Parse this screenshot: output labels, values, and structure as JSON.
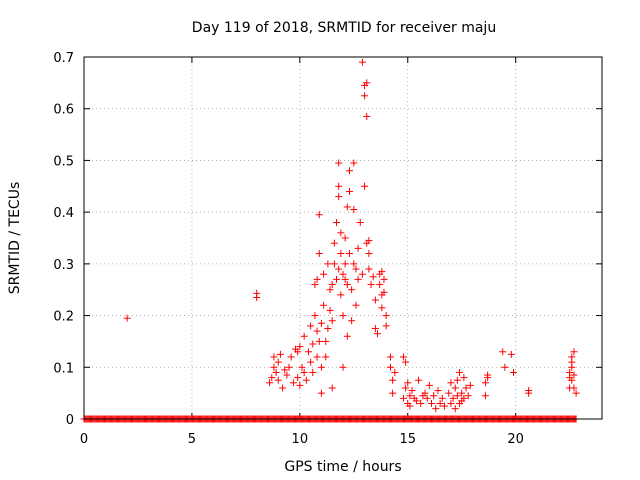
{
  "chart_data": {
    "type": "scatter",
    "title": "Day 119 of 2018, SRMTID for receiver maju",
    "xlabel": "GPS time / hours",
    "ylabel": "SRMTID / TECUs",
    "xlim": [
      0,
      24
    ],
    "ylim": [
      0,
      0.7
    ],
    "x_ticks": [
      0,
      5,
      10,
      15,
      20
    ],
    "y_ticks": [
      0,
      0.1,
      0.2,
      0.3,
      0.4,
      0.5,
      0.6,
      0.7
    ],
    "x_tick_labels": [
      "0",
      "5",
      "10",
      "15",
      "20"
    ],
    "y_tick_labels": [
      "0",
      "0.1",
      "0.2",
      "0.3",
      "0.4",
      "0.5",
      "0.6",
      "0.7"
    ],
    "grid": true,
    "marker": "+",
    "marker_color": "#ff0000",
    "series": [
      {
        "name": "SRMTID",
        "points": [
          [
            2.0,
            0.195
          ],
          [
            8.0,
            0.235
          ],
          [
            8.0,
            0.243
          ],
          [
            8.6,
            0.07
          ],
          [
            8.7,
            0.08
          ],
          [
            8.8,
            0.1
          ],
          [
            8.8,
            0.12
          ],
          [
            8.9,
            0.09
          ],
          [
            9.0,
            0.075
          ],
          [
            9.0,
            0.11
          ],
          [
            9.1,
            0.125
          ],
          [
            9.2,
            0.06
          ],
          [
            9.3,
            0.095
          ],
          [
            9.4,
            0.085
          ],
          [
            9.5,
            0.1
          ],
          [
            9.6,
            0.12
          ],
          [
            9.7,
            0.07
          ],
          [
            9.8,
            0.135
          ],
          [
            9.9,
            0.08
          ],
          [
            9.9,
            0.13
          ],
          [
            10.0,
            0.065
          ],
          [
            10.0,
            0.14
          ],
          [
            10.1,
            0.1
          ],
          [
            10.2,
            0.16
          ],
          [
            10.2,
            0.09
          ],
          [
            10.3,
            0.075
          ],
          [
            10.4,
            0.13
          ],
          [
            10.5,
            0.11
          ],
          [
            10.5,
            0.18
          ],
          [
            10.6,
            0.145
          ],
          [
            10.6,
            0.09
          ],
          [
            10.7,
            0.2
          ],
          [
            10.7,
            0.26
          ],
          [
            10.8,
            0.12
          ],
          [
            10.8,
            0.17
          ],
          [
            10.8,
            0.27
          ],
          [
            10.9,
            0.15
          ],
          [
            10.9,
            0.32
          ],
          [
            10.9,
            0.395
          ],
          [
            11.0,
            0.1
          ],
          [
            11.0,
            0.185
          ],
          [
            11.0,
            0.05
          ],
          [
            11.1,
            0.22
          ],
          [
            11.1,
            0.28
          ],
          [
            11.2,
            0.12
          ],
          [
            11.2,
            0.15
          ],
          [
            11.3,
            0.175
          ],
          [
            11.3,
            0.3
          ],
          [
            11.4,
            0.21
          ],
          [
            11.4,
            0.25
          ],
          [
            11.5,
            0.19
          ],
          [
            11.5,
            0.26
          ],
          [
            11.5,
            0.06
          ],
          [
            11.6,
            0.3
          ],
          [
            11.6,
            0.34
          ],
          [
            11.7,
            0.27
          ],
          [
            11.7,
            0.38
          ],
          [
            11.8,
            0.29
          ],
          [
            11.8,
            0.45
          ],
          [
            11.8,
            0.495
          ],
          [
            11.8,
            0.43
          ],
          [
            11.9,
            0.32
          ],
          [
            11.9,
            0.24
          ],
          [
            11.9,
            0.36
          ],
          [
            12.0,
            0.28
          ],
          [
            12.0,
            0.1
          ],
          [
            12.0,
            0.2
          ],
          [
            12.1,
            0.3
          ],
          [
            12.1,
            0.35
          ],
          [
            12.1,
            0.27
          ],
          [
            12.2,
            0.26
          ],
          [
            12.2,
            0.16
          ],
          [
            12.2,
            0.41
          ],
          [
            12.3,
            0.44
          ],
          [
            12.3,
            0.32
          ],
          [
            12.3,
            0.48
          ],
          [
            12.4,
            0.25
          ],
          [
            12.4,
            0.19
          ],
          [
            12.5,
            0.405
          ],
          [
            12.5,
            0.495
          ],
          [
            12.5,
            0.3
          ],
          [
            12.6,
            0.22
          ],
          [
            12.6,
            0.29
          ],
          [
            12.7,
            0.27
          ],
          [
            12.7,
            0.33
          ],
          [
            12.8,
            0.38
          ],
          [
            12.9,
            0.69
          ],
          [
            12.9,
            0.28
          ],
          [
            13.0,
            0.45
          ],
          [
            13.0,
            0.625
          ],
          [
            13.0,
            0.645
          ],
          [
            13.1,
            0.65
          ],
          [
            13.1,
            0.585
          ],
          [
            13.1,
            0.34
          ],
          [
            13.2,
            0.345
          ],
          [
            13.2,
            0.29
          ],
          [
            13.2,
            0.32
          ],
          [
            13.3,
            0.26
          ],
          [
            13.4,
            0.275
          ],
          [
            13.5,
            0.23
          ],
          [
            13.5,
            0.175
          ],
          [
            13.6,
            0.165
          ],
          [
            13.7,
            0.28
          ],
          [
            13.7,
            0.26
          ],
          [
            13.8,
            0.285
          ],
          [
            13.8,
            0.215
          ],
          [
            13.8,
            0.24
          ],
          [
            13.9,
            0.245
          ],
          [
            13.9,
            0.27
          ],
          [
            14.0,
            0.2
          ],
          [
            14.0,
            0.18
          ],
          [
            14.2,
            0.12
          ],
          [
            14.2,
            0.1
          ],
          [
            14.3,
            0.05
          ],
          [
            14.3,
            0.075
          ],
          [
            14.4,
            0.09
          ],
          [
            14.8,
            0.12
          ],
          [
            14.8,
            0.04
          ],
          [
            14.9,
            0.06
          ],
          [
            14.9,
            0.11
          ],
          [
            15.0,
            0.03
          ],
          [
            15.0,
            0.07
          ],
          [
            15.1,
            0.045
          ],
          [
            15.1,
            0.025
          ],
          [
            15.2,
            0.055
          ],
          [
            15.3,
            0.04
          ],
          [
            15.4,
            0.035
          ],
          [
            15.5,
            0.075
          ],
          [
            15.6,
            0.03
          ],
          [
            15.7,
            0.045
          ],
          [
            15.8,
            0.05
          ],
          [
            15.9,
            0.04
          ],
          [
            16.0,
            0.065
          ],
          [
            16.1,
            0.03
          ],
          [
            16.2,
            0.045
          ],
          [
            16.3,
            0.02
          ],
          [
            16.4,
            0.055
          ],
          [
            16.5,
            0.03
          ],
          [
            16.6,
            0.04
          ],
          [
            16.7,
            0.025
          ],
          [
            16.9,
            0.05
          ],
          [
            17.0,
            0.07
          ],
          [
            17.0,
            0.03
          ],
          [
            17.1,
            0.04
          ],
          [
            17.2,
            0.06
          ],
          [
            17.2,
            0.02
          ],
          [
            17.3,
            0.045
          ],
          [
            17.3,
            0.075
          ],
          [
            17.4,
            0.03
          ],
          [
            17.4,
            0.09
          ],
          [
            17.5,
            0.05
          ],
          [
            17.5,
            0.035
          ],
          [
            17.6,
            0.08
          ],
          [
            17.6,
            0.04
          ],
          [
            17.7,
            0.06
          ],
          [
            17.8,
            0.045
          ],
          [
            17.9,
            0.065
          ],
          [
            18.6,
            0.045
          ],
          [
            18.6,
            0.07
          ],
          [
            18.7,
            0.08
          ],
          [
            18.7,
            0.085
          ],
          [
            19.4,
            0.13
          ],
          [
            19.5,
            0.1
          ],
          [
            19.8,
            0.125
          ],
          [
            19.9,
            0.09
          ],
          [
            20.6,
            0.055
          ],
          [
            20.6,
            0.05
          ],
          [
            22.5,
            0.06
          ],
          [
            22.5,
            0.08
          ],
          [
            22.5,
            0.09
          ],
          [
            22.6,
            0.075
          ],
          [
            22.6,
            0.1
          ],
          [
            22.6,
            0.11
          ],
          [
            22.6,
            0.12
          ],
          [
            22.7,
            0.085
          ],
          [
            22.7,
            0.06
          ],
          [
            22.7,
            0.13
          ],
          [
            22.8,
            0.05
          ]
        ],
        "zero_coverage_hours": [
          0,
          22.8
        ]
      }
    ]
  }
}
